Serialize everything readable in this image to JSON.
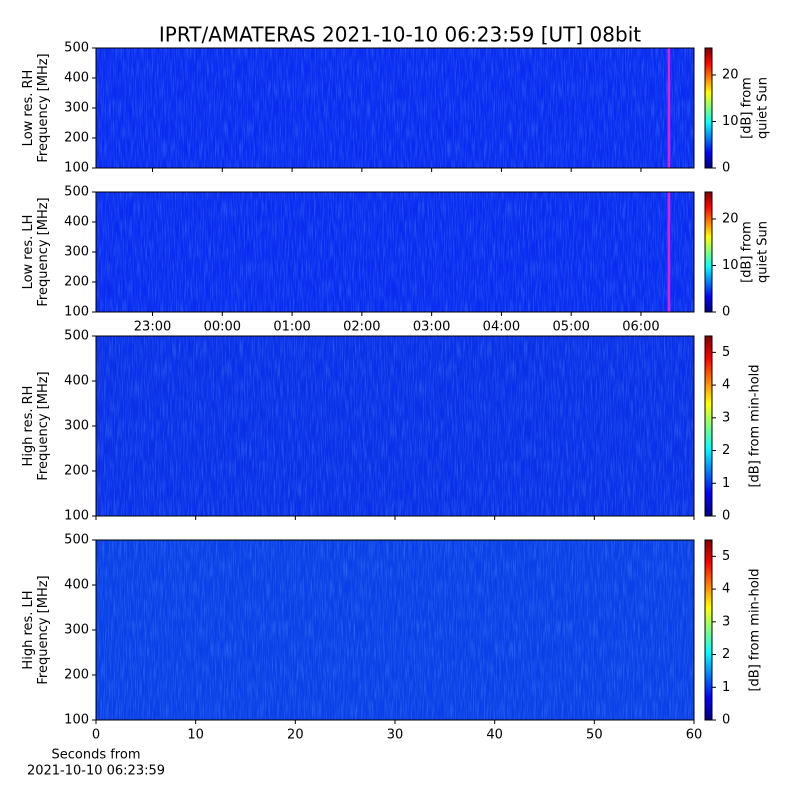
{
  "chart_data": [
    {
      "type": "heatmap",
      "title": "IPRT/AMATERAS 2021-10-10 06:23:59 [UT]   08bit",
      "ylabel": [
        "Low res. RH",
        "Frequency [MHz]"
      ],
      "ylim": [
        100,
        500
      ],
      "yticks": [
        100,
        200,
        300,
        400,
        500
      ],
      "xlim": [
        -1.81,
        6.76
      ],
      "xticks": [
        {
          "value": -1,
          "label": "23:00"
        },
        {
          "value": 0,
          "label": "00:00"
        },
        {
          "value": 1,
          "label": "01:00"
        },
        {
          "value": 2,
          "label": "02:00"
        },
        {
          "value": 3,
          "label": "03:00"
        },
        {
          "value": 4,
          "label": "04:00"
        },
        {
          "value": 5,
          "label": "05:00"
        },
        {
          "value": 6,
          "label": "06:00"
        }
      ],
      "xtick_labels": false,
      "marker_x": 6.4,
      "marker_color": "#e020e0",
      "color": "#0a2cf0",
      "colormap": [
        "#00007f",
        "#0000ff",
        "#007fff",
        "#00ffff",
        "#7fff7f",
        "#ffff00",
        "#ff7f00",
        "#ff0000",
        "#7f0000"
      ],
      "colorbar": {
        "label": [
          "[dB] from",
          "quiet Sun"
        ],
        "lim": [
          0,
          25.8
        ],
        "ticks": [
          0,
          10,
          20
        ]
      }
    },
    {
      "type": "heatmap",
      "ylabel": [
        "Low res. LH",
        "Frequency [MHz]"
      ],
      "ylim": [
        100,
        500
      ],
      "yticks": [
        100,
        200,
        300,
        400,
        500
      ],
      "xlim": [
        -1.81,
        6.76
      ],
      "xticks": [
        {
          "value": -1,
          "label": "23:00"
        },
        {
          "value": 0,
          "label": "00:00"
        },
        {
          "value": 1,
          "label": "01:00"
        },
        {
          "value": 2,
          "label": "02:00"
        },
        {
          "value": 3,
          "label": "03:00"
        },
        {
          "value": 4,
          "label": "04:00"
        },
        {
          "value": 5,
          "label": "05:00"
        },
        {
          "value": 6,
          "label": "06:00"
        }
      ],
      "xtick_labels": true,
      "marker_x": 6.4,
      "marker_color": "#e020e0",
      "color": "#0a2cf0",
      "colormap": [
        "#00007f",
        "#0000ff",
        "#007fff",
        "#00ffff",
        "#7fff7f",
        "#ffff00",
        "#ff7f00",
        "#ff0000",
        "#7f0000"
      ],
      "colorbar": {
        "label": [
          "[dB] from",
          "quiet Sun"
        ],
        "lim": [
          0,
          25.8
        ],
        "ticks": [
          0,
          10,
          20
        ]
      }
    },
    {
      "type": "heatmap",
      "ylabel": [
        "High res. RH",
        "Frequency [MHz]"
      ],
      "ylim": [
        100,
        500
      ],
      "yticks": [
        100,
        200,
        300,
        400,
        500
      ],
      "xlim": [
        0,
        60
      ],
      "xticks": [
        0,
        10,
        20,
        30,
        40,
        50,
        60
      ],
      "xtick_labels": false,
      "color": "#0a30e8",
      "colormap": [
        "#00007f",
        "#0000ff",
        "#007fff",
        "#00ffff",
        "#7fff7f",
        "#ffff00",
        "#ff7f00",
        "#ff0000",
        "#7f0000"
      ],
      "colorbar": {
        "label": [
          "[dB] from min-hold"
        ],
        "lim": [
          0,
          5.5
        ],
        "ticks": [
          0,
          1,
          2,
          3,
          4,
          5
        ]
      }
    },
    {
      "type": "heatmap",
      "ylabel": [
        "High res. LH",
        "Frequency [MHz]"
      ],
      "ylim": [
        100,
        500
      ],
      "yticks": [
        100,
        200,
        300,
        400,
        500
      ],
      "xlim": [
        0,
        60
      ],
      "xticks": [
        0,
        10,
        20,
        30,
        40,
        50,
        60
      ],
      "xtick_labels": true,
      "color": "#0a40e8",
      "xlabel": [
        "Seconds from",
        "2021-10-10 06:23:59"
      ],
      "colormap": [
        "#00007f",
        "#0000ff",
        "#007fff",
        "#00ffff",
        "#7fff7f",
        "#ffff00",
        "#ff7f00",
        "#ff0000",
        "#7f0000"
      ],
      "colorbar": {
        "label": [
          "[dB] from min-hold"
        ],
        "lim": [
          0,
          5.5
        ],
        "ticks": [
          0,
          1,
          2,
          3,
          4,
          5
        ]
      }
    }
  ]
}
